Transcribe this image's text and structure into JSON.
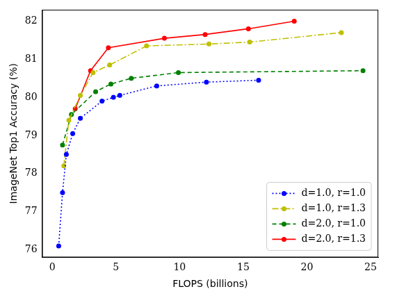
{
  "chart_data": {
    "type": "line",
    "x_label": "FLOPS (billions)",
    "y_label": "ImageNet Top1 Accuracy (%)",
    "xlim": [
      -0.8,
      25.6
    ],
    "xticks": [
      0,
      5,
      10,
      15,
      20,
      25
    ],
    "ylim": [
      75.8,
      82.3
    ],
    "yticks": [
      76,
      77,
      78,
      79,
      80,
      81,
      82
    ],
    "grid": false,
    "legend": "lower right",
    "series": [
      {
        "name": "d=1.0, r=1.0",
        "color": "#0000ff",
        "line_style": "dotted",
        "marker": "circle",
        "x": [
          0.5,
          0.8,
          1.1,
          1.6,
          2.2,
          3.9,
          4.8,
          5.3,
          8.2,
          12.1,
          16.2
        ],
        "values": [
          76.1,
          77.5,
          78.5,
          79.05,
          79.45,
          79.9,
          80.0,
          80.05,
          80.3,
          80.4,
          80.45
        ]
      },
      {
        "name": "d=1.0, r=1.3",
        "color": "#bfbf00",
        "line_style": "dashdot",
        "marker": "circle",
        "x": [
          0.9,
          1.3,
          2.2,
          3.2,
          4.5,
          7.4,
          12.3,
          15.5,
          22.7
        ],
        "values": [
          78.2,
          79.4,
          80.05,
          80.65,
          80.85,
          81.35,
          81.4,
          81.45,
          81.7
        ]
      },
      {
        "name": "d=2.0, r=1.0",
        "color": "#008000",
        "line_style": "dashed",
        "marker": "circle",
        "x": [
          0.8,
          1.5,
          3.4,
          4.6,
          6.2,
          9.9,
          24.4
        ],
        "values": [
          78.75,
          79.55,
          80.15,
          80.35,
          80.5,
          80.65,
          80.7
        ]
      },
      {
        "name": "d=2.0, r=1.3",
        "color": "#ff0000",
        "line_style": "solid",
        "marker": "circle",
        "x": [
          1.8,
          3.0,
          4.4,
          8.8,
          12.0,
          15.4,
          19.0
        ],
        "values": [
          79.7,
          80.7,
          81.3,
          81.55,
          81.65,
          81.8,
          82.0
        ]
      }
    ]
  }
}
